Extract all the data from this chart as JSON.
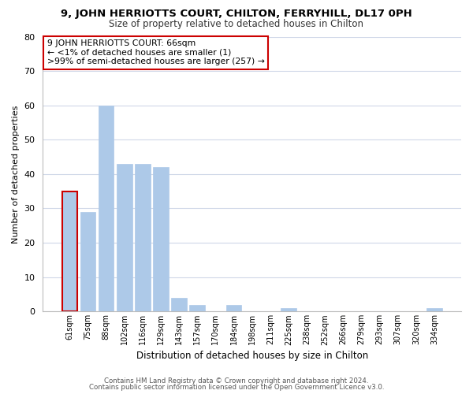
{
  "title": "9, JOHN HERRIOTTS COURT, CHILTON, FERRYHILL, DL17 0PH",
  "subtitle": "Size of property relative to detached houses in Chilton",
  "xlabel": "Distribution of detached houses by size in Chilton",
  "ylabel": "Number of detached properties",
  "categories": [
    "61sqm",
    "75sqm",
    "88sqm",
    "102sqm",
    "116sqm",
    "129sqm",
    "143sqm",
    "157sqm",
    "170sqm",
    "184sqm",
    "198sqm",
    "211sqm",
    "225sqm",
    "238sqm",
    "252sqm",
    "266sqm",
    "279sqm",
    "293sqm",
    "307sqm",
    "320sqm",
    "334sqm"
  ],
  "values": [
    35,
    29,
    60,
    43,
    43,
    42,
    4,
    2,
    0,
    2,
    0,
    0,
    1,
    0,
    0,
    0,
    0,
    0,
    0,
    0,
    1
  ],
  "bar_color": "#adc9e8",
  "highlight_color": "#cc0000",
  "ylim": [
    0,
    80
  ],
  "yticks": [
    0,
    10,
    20,
    30,
    40,
    50,
    60,
    70,
    80
  ],
  "annotation_lines": [
    "9 JOHN HERRIOTTS COURT: 66sqm",
    "← <1% of detached houses are smaller (1)",
    ">99% of semi-detached houses are larger (257) →"
  ],
  "footer1": "Contains HM Land Registry data © Crown copyright and database right 2024.",
  "footer2": "Contains public sector information licensed under the Open Government Licence v3.0.",
  "background_color": "#ffffff",
  "grid_color": "#d0d8e8"
}
